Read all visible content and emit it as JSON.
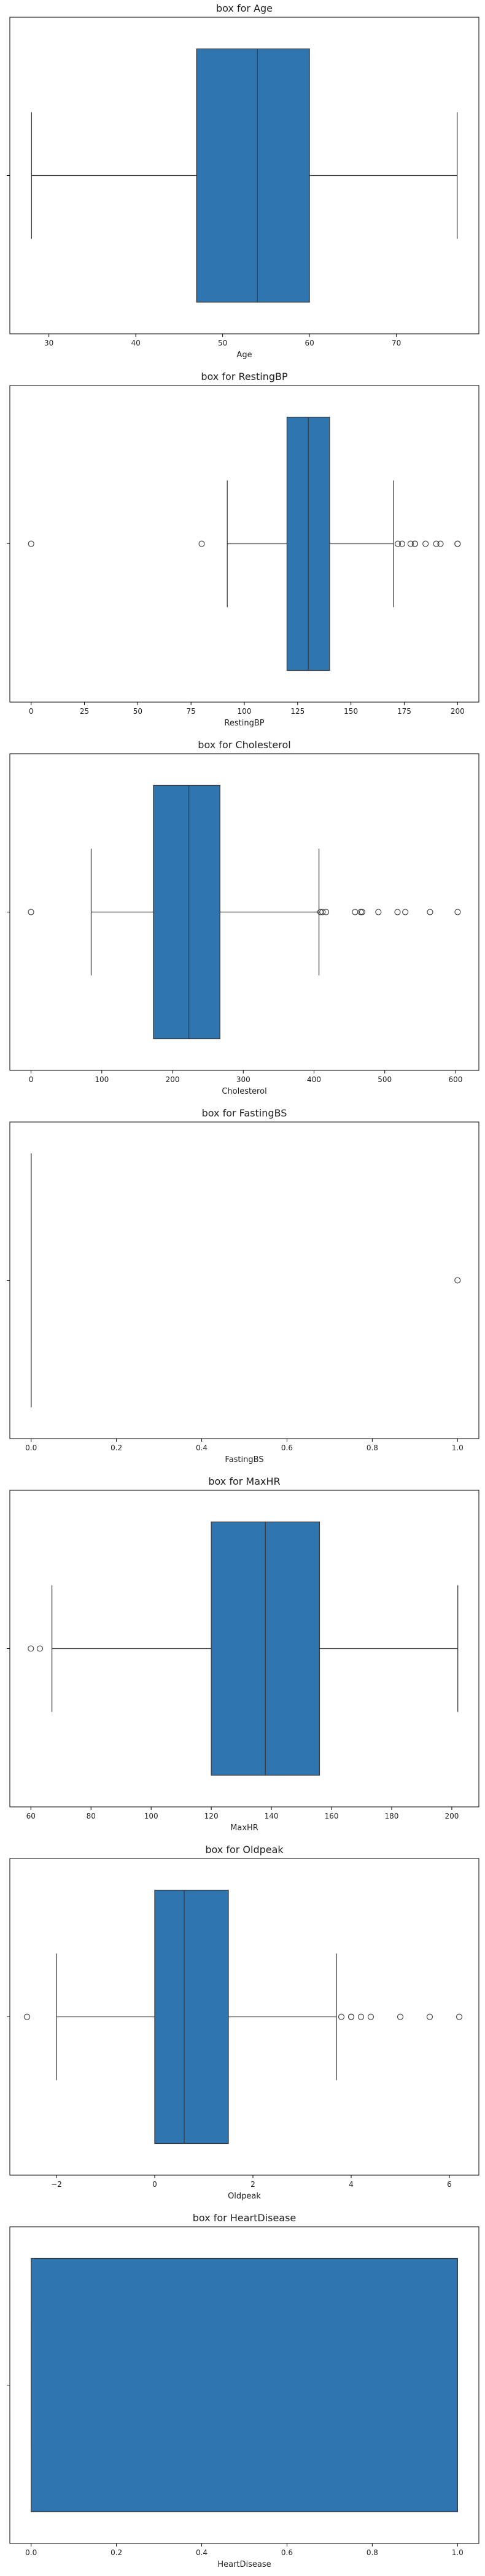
{
  "page": {
    "orientation": "vertical boxplots stack"
  },
  "colors": {
    "box_fill": "#2f75b0",
    "box_edge": "#3b3b3b",
    "whisker": "#3b3b3b",
    "axes_frame": "#000000",
    "text": "#222222",
    "outlier_edge": "#3b3b3b"
  },
  "chart_data": [
    {
      "type": "box",
      "title": "box for Age",
      "xlabel": "Age",
      "xlim": [
        25.5,
        79.5
      ],
      "xticks": [
        30,
        40,
        50,
        60,
        70
      ],
      "stats": {
        "whislo": 28,
        "q1": 47,
        "median": 54,
        "q3": 60,
        "whishi": 77
      },
      "outliers": []
    },
    {
      "type": "box",
      "title": "box for RestingBP",
      "xlabel": "RestingBP",
      "xlim": [
        -10,
        210
      ],
      "xticks": [
        0,
        25,
        50,
        75,
        100,
        125,
        150,
        175,
        200
      ],
      "stats": {
        "whislo": 92,
        "q1": 120,
        "median": 130,
        "q3": 140,
        "whishi": 170
      },
      "outliers": [
        0,
        80,
        172,
        174,
        178,
        180,
        180,
        185,
        190,
        192,
        200,
        200
      ]
    },
    {
      "type": "box",
      "title": "box for Cholesterol",
      "xlabel": "Cholesterol",
      "xlim": [
        -30,
        633
      ],
      "xticks": [
        0,
        100,
        200,
        300,
        400,
        500,
        600
      ],
      "stats": {
        "whislo": 85,
        "q1": 173,
        "median": 223,
        "q3": 267,
        "whishi": 407
      },
      "outliers": [
        0,
        409,
        412,
        417,
        458,
        466,
        468,
        491,
        518,
        529,
        564,
        603
      ]
    },
    {
      "type": "box",
      "title": "box for FastingBS",
      "xlabel": "FastingBS",
      "xlim": [
        -0.05,
        1.05
      ],
      "xticks": [
        0.0,
        0.2,
        0.4,
        0.6,
        0.8,
        1.0
      ],
      "stats": {
        "whislo": 0,
        "q1": 0,
        "median": 0,
        "q3": 0,
        "whishi": 0
      },
      "outliers": [
        1
      ]
    },
    {
      "type": "box",
      "title": "box for MaxHR",
      "xlabel": "MaxHR",
      "xlim": [
        53,
        209
      ],
      "xticks": [
        60,
        80,
        100,
        120,
        140,
        160,
        180,
        200
      ],
      "stats": {
        "whislo": 67,
        "q1": 120,
        "median": 138,
        "q3": 156,
        "whishi": 202
      },
      "outliers": [
        60,
        63
      ]
    },
    {
      "type": "box",
      "title": "box for Oldpeak",
      "xlabel": "Oldpeak",
      "xlim": [
        -2.95,
        6.6
      ],
      "xticks": [
        -2,
        0,
        2,
        4,
        6
      ],
      "stats": {
        "whislo": -2,
        "q1": 0,
        "median": 0.6,
        "q3": 1.5,
        "whishi": 3.7
      },
      "outliers": [
        -2.6,
        3.8,
        4.0,
        4.0,
        4.2,
        4.4,
        5.0,
        5.6,
        6.2
      ]
    },
    {
      "type": "box",
      "title": "box for HeartDisease",
      "xlabel": "HeartDisease",
      "xlim": [
        -0.05,
        1.05
      ],
      "xticks": [
        0.0,
        0.2,
        0.4,
        0.6,
        0.8,
        1.0
      ],
      "stats": {
        "whislo": 0,
        "q1": 0,
        "median": 1,
        "q3": 1,
        "whishi": 1
      },
      "outliers": []
    }
  ]
}
